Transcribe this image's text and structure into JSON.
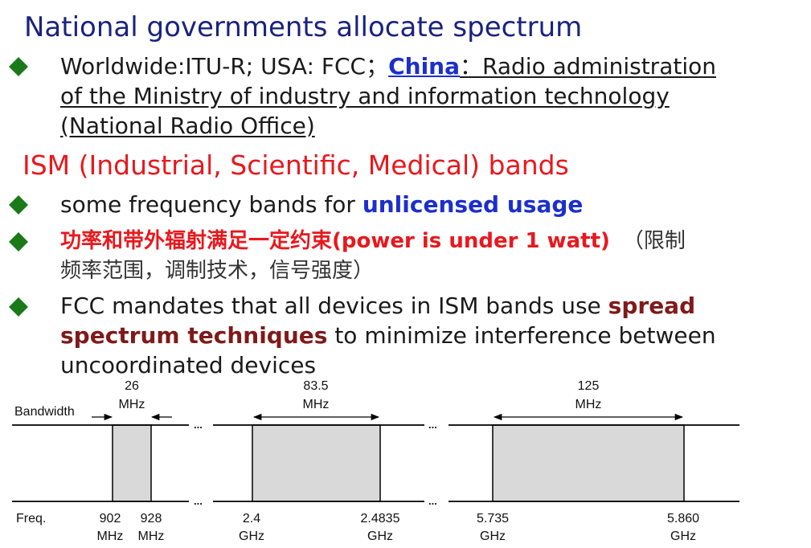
{
  "heading1": "National governments allocate spectrum",
  "bullet1": {
    "pre": "Worldwide:ITU-R; USA: FCC；",
    "china": "China",
    "post_line1": "：Radio administration",
    "line2": "of the Ministry of industry and information technology",
    "line3": "(National Radio Office)"
  },
  "heading2": "ISM (Industrial, Scientific, Medical) bands",
  "bullet2": {
    "pre": "some frequency bands for ",
    "emph": "unlicensed usage"
  },
  "bullet3": {
    "red": "功率和带外辐射满足一定约束(power is under 1 watt)",
    "gray_line1": "（限制",
    "gray_line2": "频率范围，调制技术，信号强度）"
  },
  "bullet4": {
    "pre": "FCC mandates that all devices in ISM bands use ",
    "emph1": "spread",
    "emph2": "spectrum techniques",
    "post2": " to minimize interference between",
    "line3": "uncoordinated devices"
  },
  "diagram": {
    "bandwidth_label": "Bandwidth",
    "freq_label": "Freq.",
    "ellipsis": "...",
    "bands": [
      {
        "bw_value": "26",
        "bw_unit": "MHz",
        "low_value": "902",
        "low_unit": "MHz",
        "high_value": "928",
        "high_unit": "MHz"
      },
      {
        "bw_value": "83.5",
        "bw_unit": "MHz",
        "low_value": "2.4",
        "low_unit": "GHz",
        "high_value": "2.4835",
        "high_unit": "GHz"
      },
      {
        "bw_value": "125",
        "bw_unit": "MHz",
        "low_value": "5.735",
        "low_unit": "GHz",
        "high_value": "5.860",
        "high_unit": "GHz"
      }
    ],
    "colors": {
      "band_fill": "#d9d9d9",
      "line": "#000000"
    }
  }
}
